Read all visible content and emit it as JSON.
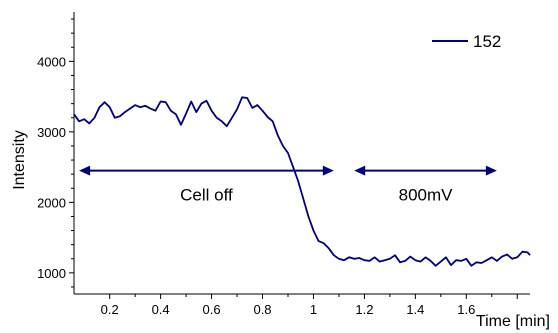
{
  "chart_data": {
    "type": "line",
    "title": "",
    "xlabel": "Time [min]",
    "ylabel": "Intensity",
    "xlim": [
      0.06,
      1.85
    ],
    "ylim": [
      700,
      4700
    ],
    "x_ticks": [
      0.2,
      0.4,
      0.6,
      0.8,
      1,
      1.2,
      1.4,
      1.6
    ],
    "x_tick_labels": [
      "0.2",
      "0.4",
      "0.6",
      "0.8",
      "1",
      "1.2",
      "1.4",
      "1.6"
    ],
    "y_ticks": [
      1000,
      2000,
      3000,
      4000
    ],
    "y_tick_labels": [
      "1000",
      "2000",
      "3000",
      "4000"
    ],
    "grid": false,
    "legend": "top-right",
    "series": [
      {
        "name": "152",
        "color": "#000080",
        "x": [
          0.06,
          0.08,
          0.1,
          0.12,
          0.14,
          0.16,
          0.18,
          0.2,
          0.22,
          0.24,
          0.26,
          0.28,
          0.3,
          0.32,
          0.34,
          0.36,
          0.38,
          0.4,
          0.42,
          0.44,
          0.46,
          0.48,
          0.5,
          0.52,
          0.54,
          0.56,
          0.58,
          0.6,
          0.62,
          0.64,
          0.66,
          0.68,
          0.7,
          0.72,
          0.74,
          0.76,
          0.78,
          0.8,
          0.82,
          0.84,
          0.86,
          0.88,
          0.9,
          0.92,
          0.94,
          0.96,
          0.98,
          1.0,
          1.02,
          1.04,
          1.06,
          1.08,
          1.1,
          1.12,
          1.14,
          1.16,
          1.18,
          1.2,
          1.22,
          1.24,
          1.26,
          1.28,
          1.3,
          1.32,
          1.34,
          1.36,
          1.38,
          1.4,
          1.42,
          1.44,
          1.46,
          1.48,
          1.5,
          1.52,
          1.54,
          1.56,
          1.58,
          1.6,
          1.62,
          1.64,
          1.66,
          1.68,
          1.7,
          1.72,
          1.74,
          1.76,
          1.78,
          1.8,
          1.82,
          1.84,
          1.85
        ],
        "values": [
          3250,
          3150,
          3180,
          3120,
          3200,
          3350,
          3420,
          3350,
          3200,
          3220,
          3280,
          3330,
          3380,
          3350,
          3370,
          3330,
          3300,
          3430,
          3420,
          3300,
          3250,
          3100,
          3260,
          3430,
          3280,
          3400,
          3440,
          3300,
          3200,
          3150,
          3080,
          3200,
          3320,
          3490,
          3480,
          3340,
          3380,
          3300,
          3210,
          3150,
          2950,
          2800,
          2700,
          2500,
          2300,
          2050,
          1800,
          1600,
          1450,
          1420,
          1350,
          1250,
          1200,
          1180,
          1220,
          1200,
          1210,
          1180,
          1170,
          1220,
          1160,
          1180,
          1200,
          1250,
          1150,
          1170,
          1230,
          1180,
          1160,
          1220,
          1170,
          1100,
          1160,
          1220,
          1110,
          1180,
          1170,
          1200,
          1100,
          1150,
          1140,
          1180,
          1220,
          1170,
          1230,
          1260,
          1200,
          1220,
          1300,
          1290,
          1250
        ]
      }
    ],
    "annotations": [
      {
        "label": "Cell off",
        "x_start": 0.08,
        "x_end": 1.08,
        "y": 2450,
        "style": "double-arrow"
      },
      {
        "label": "800mV",
        "x_start": 1.16,
        "x_end": 1.72,
        "y": 2450,
        "style": "double-arrow"
      }
    ]
  }
}
